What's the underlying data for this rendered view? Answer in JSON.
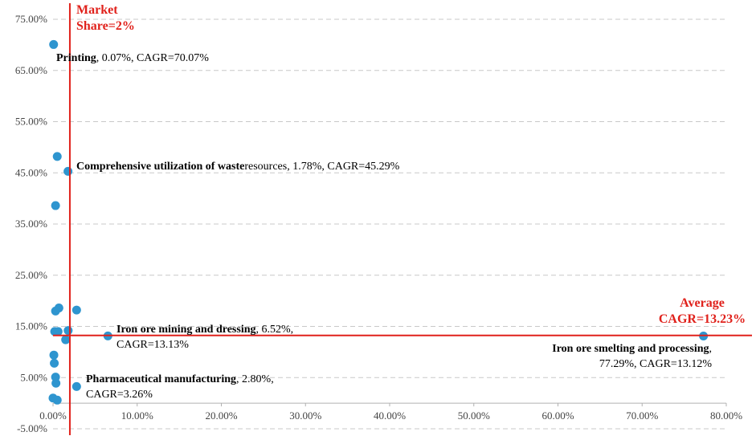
{
  "chart_data": {
    "type": "scatter",
    "xlim": [
      0,
      80
    ],
    "ylim": [
      -5,
      75
    ],
    "x_ticks": [
      0,
      10,
      20,
      30,
      40,
      50,
      60,
      70,
      80
    ],
    "y_ticks": [
      -5,
      5,
      15,
      25,
      35,
      45,
      55,
      65,
      75
    ],
    "x_tick_labels": [
      "0.00%",
      "10.00%",
      "20.00%",
      "30.00%",
      "40.00%",
      "50.00%",
      "60.00%",
      "70.00%",
      "80.00%"
    ],
    "y_tick_labels": [
      "-5.00%",
      "5.00%",
      "15.00%",
      "25.00%",
      "35.00%",
      "45.00%",
      "55.00%",
      "65.00%",
      "75.00%"
    ],
    "grid": "horizontal dashed",
    "points": [
      {
        "x": 0.07,
        "y": 70.07
      },
      {
        "x": 0.5,
        "y": 48.2
      },
      {
        "x": 1.78,
        "y": 45.29
      },
      {
        "x": 0.3,
        "y": 38.6
      },
      {
        "x": 0.7,
        "y": 18.6
      },
      {
        "x": 0.3,
        "y": 18.0
      },
      {
        "x": 2.8,
        "y": 18.2
      },
      {
        "x": 0.2,
        "y": 14.0
      },
      {
        "x": 0.6,
        "y": 14.0
      },
      {
        "x": 1.8,
        "y": 14.2
      },
      {
        "x": 1.5,
        "y": 12.4
      },
      {
        "x": 6.52,
        "y": 13.13
      },
      {
        "x": 77.29,
        "y": 13.12
      },
      {
        "x": 0.1,
        "y": 9.4
      },
      {
        "x": 0.15,
        "y": 7.8
      },
      {
        "x": 0.3,
        "y": 5.1
      },
      {
        "x": 0.35,
        "y": 3.9
      },
      {
        "x": 2.8,
        "y": 3.26
      },
      {
        "x": 0.0,
        "y": 1.0
      },
      {
        "x": 0.5,
        "y": 0.6
      }
    ],
    "reference_lines": [
      {
        "orientation": "vertical",
        "value": 2,
        "label_lines": [
          "Market",
          "Share=2%"
        ]
      },
      {
        "orientation": "horizontal",
        "value": 13.23,
        "label_lines": [
          "Average",
          "CAGR=13.23%"
        ]
      }
    ],
    "annotations": [
      {
        "bold": "Printing",
        "lines": [
          ", 0.07%, CAGR=70.07%"
        ]
      },
      {
        "bold": "Comprehensive utilization of waste",
        "lines": [
          "resources, 1.78%, CAGR=45.29%"
        ]
      },
      {
        "bold": "Iron ore mining and dressing",
        "lines": [
          ", 6.52%,",
          "CAGR=13.13%"
        ]
      },
      {
        "bold": "Iron ore smelting and processing",
        "lines": [
          ",",
          "77.29%, CAGR=13.12%"
        ]
      },
      {
        "bold": "Pharmaceutical manufacturing",
        "lines": [
          ", 2.80%,",
          "CAGR=3.26%"
        ]
      }
    ],
    "colors": {
      "points": "#2e95cf",
      "reference": "#e0211b",
      "grid": "#c8c8c8"
    }
  }
}
